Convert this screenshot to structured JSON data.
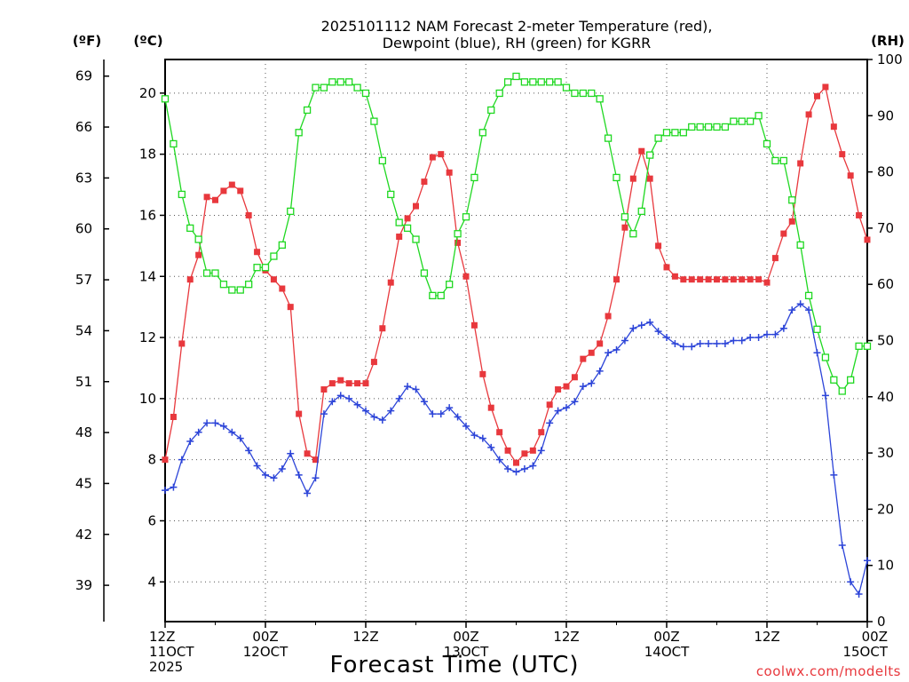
{
  "chart_data": {
    "type": "line",
    "title_line1": "2025101112 NAM Forecast 2-meter Temperature (red),",
    "title_line2": "Dewpoint (blue), RH (green) for KGRR",
    "xlabel": "Forecast Time (UTC)",
    "credit": "coolwx.com/modelts",
    "units": {
      "fahrenheit": "(ºF)",
      "celsius": "(ºC)",
      "rh": "(RH)"
    },
    "x_hours_range": [
      0,
      84
    ],
    "x_ticks": [
      {
        "hour": 0,
        "line1": "12Z",
        "line2": "11OCT",
        "line3": "2025"
      },
      {
        "hour": 12,
        "line1": "00Z",
        "line2": "12OCT",
        "line3": ""
      },
      {
        "hour": 24,
        "line1": "12Z",
        "line2": "",
        "line3": ""
      },
      {
        "hour": 36,
        "line1": "00Z",
        "line2": "13OCT",
        "line3": ""
      },
      {
        "hour": 48,
        "line1": "12Z",
        "line2": "",
        "line3": ""
      },
      {
        "hour": 60,
        "line1": "00Z",
        "line2": "14OCT",
        "line3": ""
      },
      {
        "hour": 72,
        "line1": "12Z",
        "line2": "",
        "line3": ""
      },
      {
        "hour": 84,
        "line1": "00Z",
        "line2": "15OCT",
        "line3": ""
      }
    ],
    "celsius_axis": {
      "range": [
        2.7,
        21.1
      ],
      "ticks": [
        "4",
        "6",
        "8",
        "10",
        "12",
        "14",
        "16",
        "18",
        "20"
      ]
    },
    "fahrenheit_axis": {
      "ticks": [
        "39",
        "42",
        "45",
        "48",
        "51",
        "54",
        "57",
        "60",
        "63",
        "66",
        "69"
      ]
    },
    "rh_axis": {
      "range": [
        0,
        100
      ],
      "ticks": [
        "0",
        "10",
        "20",
        "30",
        "40",
        "50",
        "60",
        "70",
        "80",
        "90",
        "100"
      ]
    },
    "grid": true,
    "series": [
      {
        "name": "2-meter Temperature",
        "unit": "C",
        "color": "#e8383d",
        "marker": "filled-square",
        "values": [
          8.0,
          9.4,
          11.8,
          13.9,
          14.7,
          16.6,
          16.5,
          16.8,
          17.0,
          16.8,
          16.0,
          14.8,
          14.2,
          13.9,
          13.6,
          13.0,
          9.5,
          8.2,
          8.0,
          10.3,
          10.5,
          10.6,
          10.5,
          10.5,
          10.5,
          11.2,
          12.3,
          13.8,
          15.3,
          15.9,
          16.3,
          17.1,
          17.9,
          18.0,
          17.4,
          15.1,
          14.0,
          12.4,
          10.8,
          9.7,
          8.9,
          8.3,
          7.9,
          8.2,
          8.3,
          8.9,
          9.8,
          10.3,
          10.4,
          10.7,
          11.3,
          11.5,
          11.8,
          12.7,
          13.9,
          15.6,
          17.2,
          18.1,
          17.2,
          15.0,
          14.3,
          14.0,
          13.9,
          13.9,
          13.9,
          13.9,
          13.9,
          13.9,
          13.9,
          13.9,
          13.9,
          13.9,
          13.8,
          14.6,
          15.4,
          15.8,
          17.7,
          19.3,
          19.9,
          20.2,
          18.9,
          18.0,
          17.3,
          16.0,
          15.2
        ]
      },
      {
        "name": "Dewpoint",
        "unit": "C",
        "color": "#2c44d8",
        "marker": "plus",
        "values": [
          7.0,
          7.1,
          8.0,
          8.6,
          8.9,
          9.2,
          9.2,
          9.1,
          8.9,
          8.7,
          8.3,
          7.8,
          7.5,
          7.4,
          7.7,
          8.2,
          7.5,
          6.9,
          7.4,
          9.5,
          9.9,
          10.1,
          10.0,
          9.8,
          9.6,
          9.4,
          9.3,
          9.6,
          10.0,
          10.4,
          10.3,
          9.9,
          9.5,
          9.5,
          9.7,
          9.4,
          9.1,
          8.8,
          8.7,
          8.4,
          8.0,
          7.7,
          7.6,
          7.7,
          7.8,
          8.3,
          9.2,
          9.6,
          9.7,
          9.9,
          10.4,
          10.5,
          10.9,
          11.5,
          11.6,
          11.9,
          12.3,
          12.4,
          12.5,
          12.2,
          12.0,
          11.8,
          11.7,
          11.7,
          11.8,
          11.8,
          11.8,
          11.8,
          11.9,
          11.9,
          12.0,
          12.0,
          12.1,
          12.1,
          12.3,
          12.9,
          13.1,
          12.9,
          11.5,
          10.1,
          7.5,
          5.2,
          4.0,
          3.6,
          4.7
        ]
      },
      {
        "name": "RH",
        "unit": "%",
        "color": "#1fd821",
        "marker": "open-square",
        "values": [
          93,
          85,
          76,
          70,
          68,
          62,
          62,
          60,
          59,
          59,
          60,
          63,
          63,
          65,
          67,
          73,
          87,
          91,
          95,
          95,
          96,
          96,
          96,
          95,
          94,
          89,
          82,
          76,
          71,
          70,
          68,
          62,
          58,
          58,
          60,
          69,
          72,
          79,
          87,
          91,
          94,
          96,
          97,
          96,
          96,
          96,
          96,
          96,
          95,
          94,
          94,
          94,
          93,
          86,
          79,
          72,
          69,
          73,
          83,
          86,
          87,
          87,
          87,
          88,
          88,
          88,
          88,
          88,
          89,
          89,
          89,
          90,
          85,
          82,
          82,
          75,
          67,
          58,
          52,
          47,
          43,
          41,
          43,
          49,
          49
        ]
      }
    ]
  }
}
